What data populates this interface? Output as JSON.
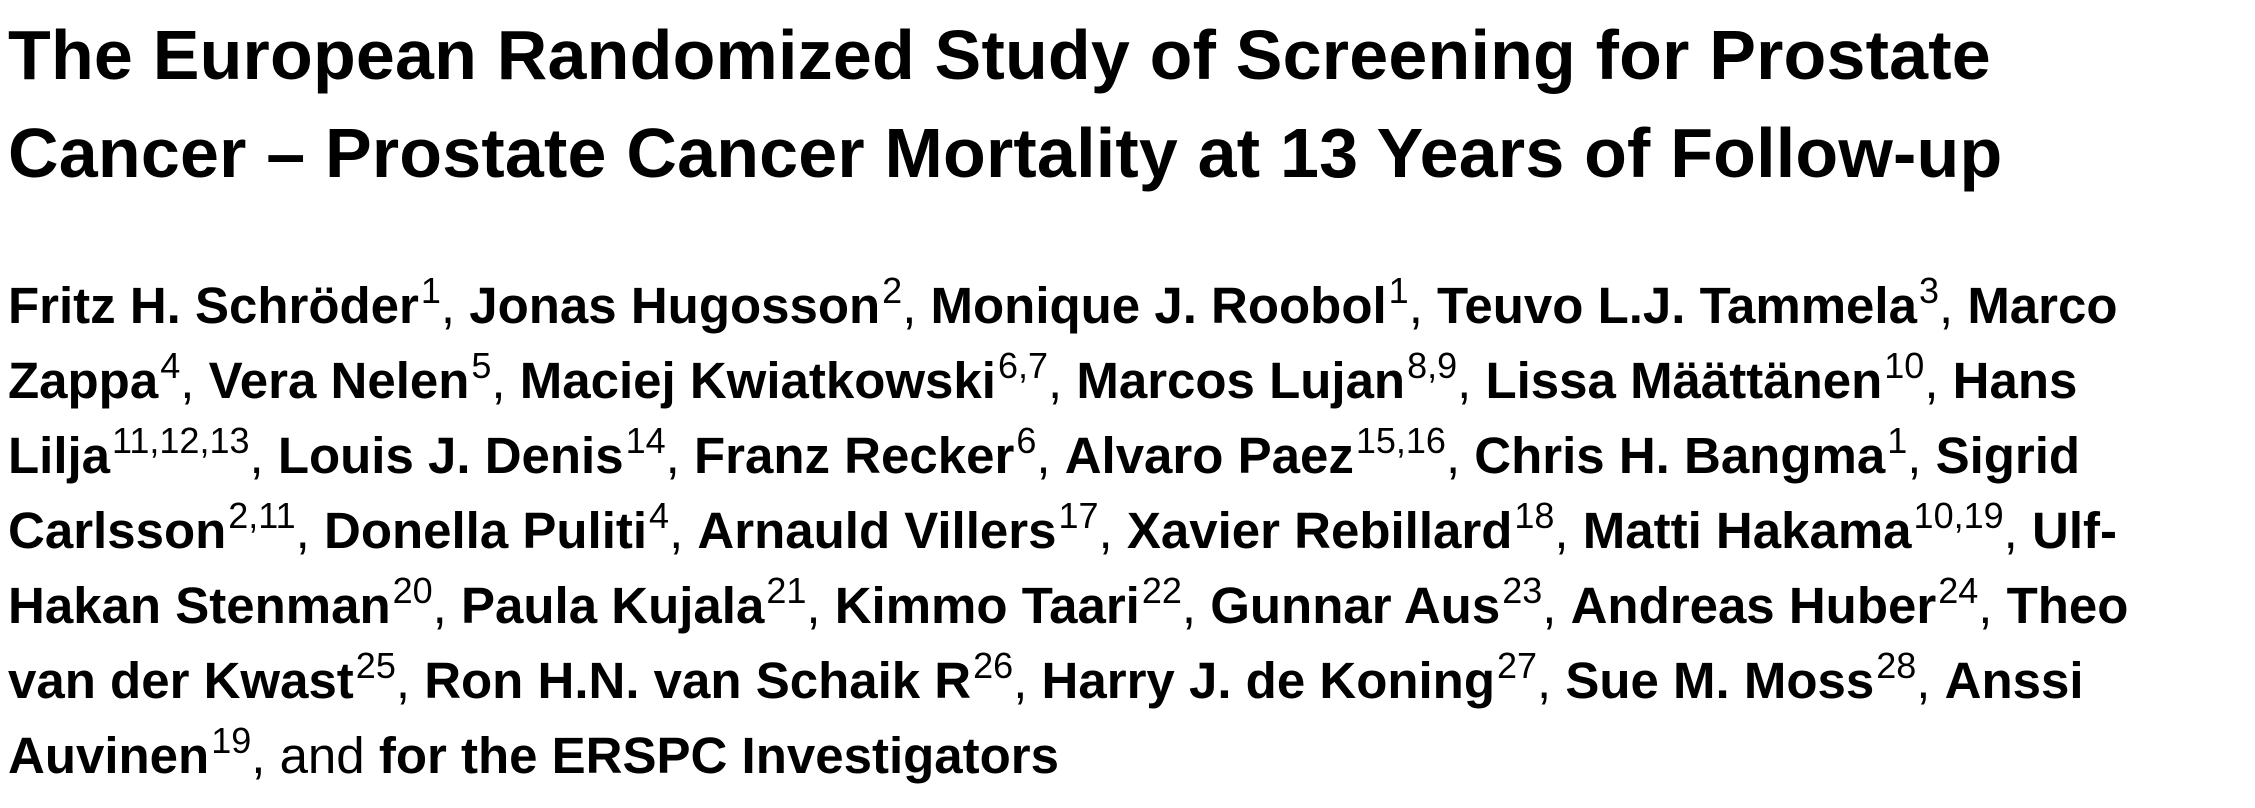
{
  "title_lines": [
    "The European Randomized Study of Screening for Prostate",
    "Cancer – Prostate Cancer Mortality at 13 Years of Follow-up"
  ],
  "author_lines": [
    [
      {
        "name": "Fritz H. Schröder",
        "aff": "1",
        "sep": ", "
      },
      {
        "name": "Jonas Hugosson",
        "aff": "2",
        "sep": ", "
      },
      {
        "name": "Monique J. Roobol",
        "aff": "1",
        "sep": ", "
      },
      {
        "name": "Teuvo L.J. Tammela",
        "aff": "3",
        "sep": ", "
      },
      {
        "name": "Marco",
        "aff": "",
        "sep": ""
      }
    ],
    [
      {
        "name": "Zappa",
        "aff": "4",
        "sep": ", "
      },
      {
        "name": "Vera Nelen",
        "aff": "5",
        "sep": ", "
      },
      {
        "name": "Maciej Kwiatkowski",
        "aff": "6,7",
        "sep": ", "
      },
      {
        "name": "Marcos Lujan",
        "aff": "8,9",
        "sep": ", "
      },
      {
        "name": "Lissa Määttänen",
        "aff": "10",
        "sep": ", "
      },
      {
        "name": "Hans",
        "aff": "",
        "sep": ""
      }
    ],
    [
      {
        "name": "Lilja",
        "aff": "11,12,13",
        "sep": ", "
      },
      {
        "name": "Louis J. Denis",
        "aff": "14",
        "sep": ", "
      },
      {
        "name": "Franz Recker",
        "aff": "6",
        "sep": ", "
      },
      {
        "name": "Alvaro Paez",
        "aff": "15,16",
        "sep": ", "
      },
      {
        "name": "Chris H. Bangma",
        "aff": "1",
        "sep": ", "
      },
      {
        "name": "Sigrid",
        "aff": "",
        "sep": ""
      }
    ],
    [
      {
        "name": "Carlsson",
        "aff": "2,11",
        "sep": ", "
      },
      {
        "name": "Donella Puliti",
        "aff": "4",
        "sep": ", "
      },
      {
        "name": "Arnauld Villers",
        "aff": "17",
        "sep": ", "
      },
      {
        "name": "Xavier Rebillard",
        "aff": "18",
        "sep": ", "
      },
      {
        "name": "Matti Hakama",
        "aff": "10,19",
        "sep": ", "
      },
      {
        "name": "Ulf-",
        "aff": "",
        "sep": ""
      }
    ],
    [
      {
        "name": "Hakan Stenman",
        "aff": "20",
        "sep": ", "
      },
      {
        "name": "Paula Kujala",
        "aff": "21",
        "sep": ", "
      },
      {
        "name": "Kimmo Taari",
        "aff": "22",
        "sep": ", "
      },
      {
        "name": "Gunnar Aus",
        "aff": "23",
        "sep": ", "
      },
      {
        "name": "Andreas Huber",
        "aff": "24",
        "sep": ", "
      },
      {
        "name": "Theo",
        "aff": "",
        "sep": ""
      }
    ],
    [
      {
        "name": "van der Kwast",
        "aff": "25",
        "sep": ", "
      },
      {
        "name": "Ron H.N. van Schaik R",
        "aff": "26",
        "sep": ", "
      },
      {
        "name": "Harry J. de Koning",
        "aff": "27",
        "sep": ", "
      },
      {
        "name": "Sue M. Moss",
        "aff": "28",
        "sep": ", "
      },
      {
        "name": "Anssi",
        "aff": "",
        "sep": ""
      }
    ],
    [
      {
        "name": "Auvinen",
        "aff": "19",
        "sep": ", and "
      },
      {
        "name": "for the ERSPC Investigators",
        "aff": "",
        "sep": ""
      }
    ]
  ]
}
